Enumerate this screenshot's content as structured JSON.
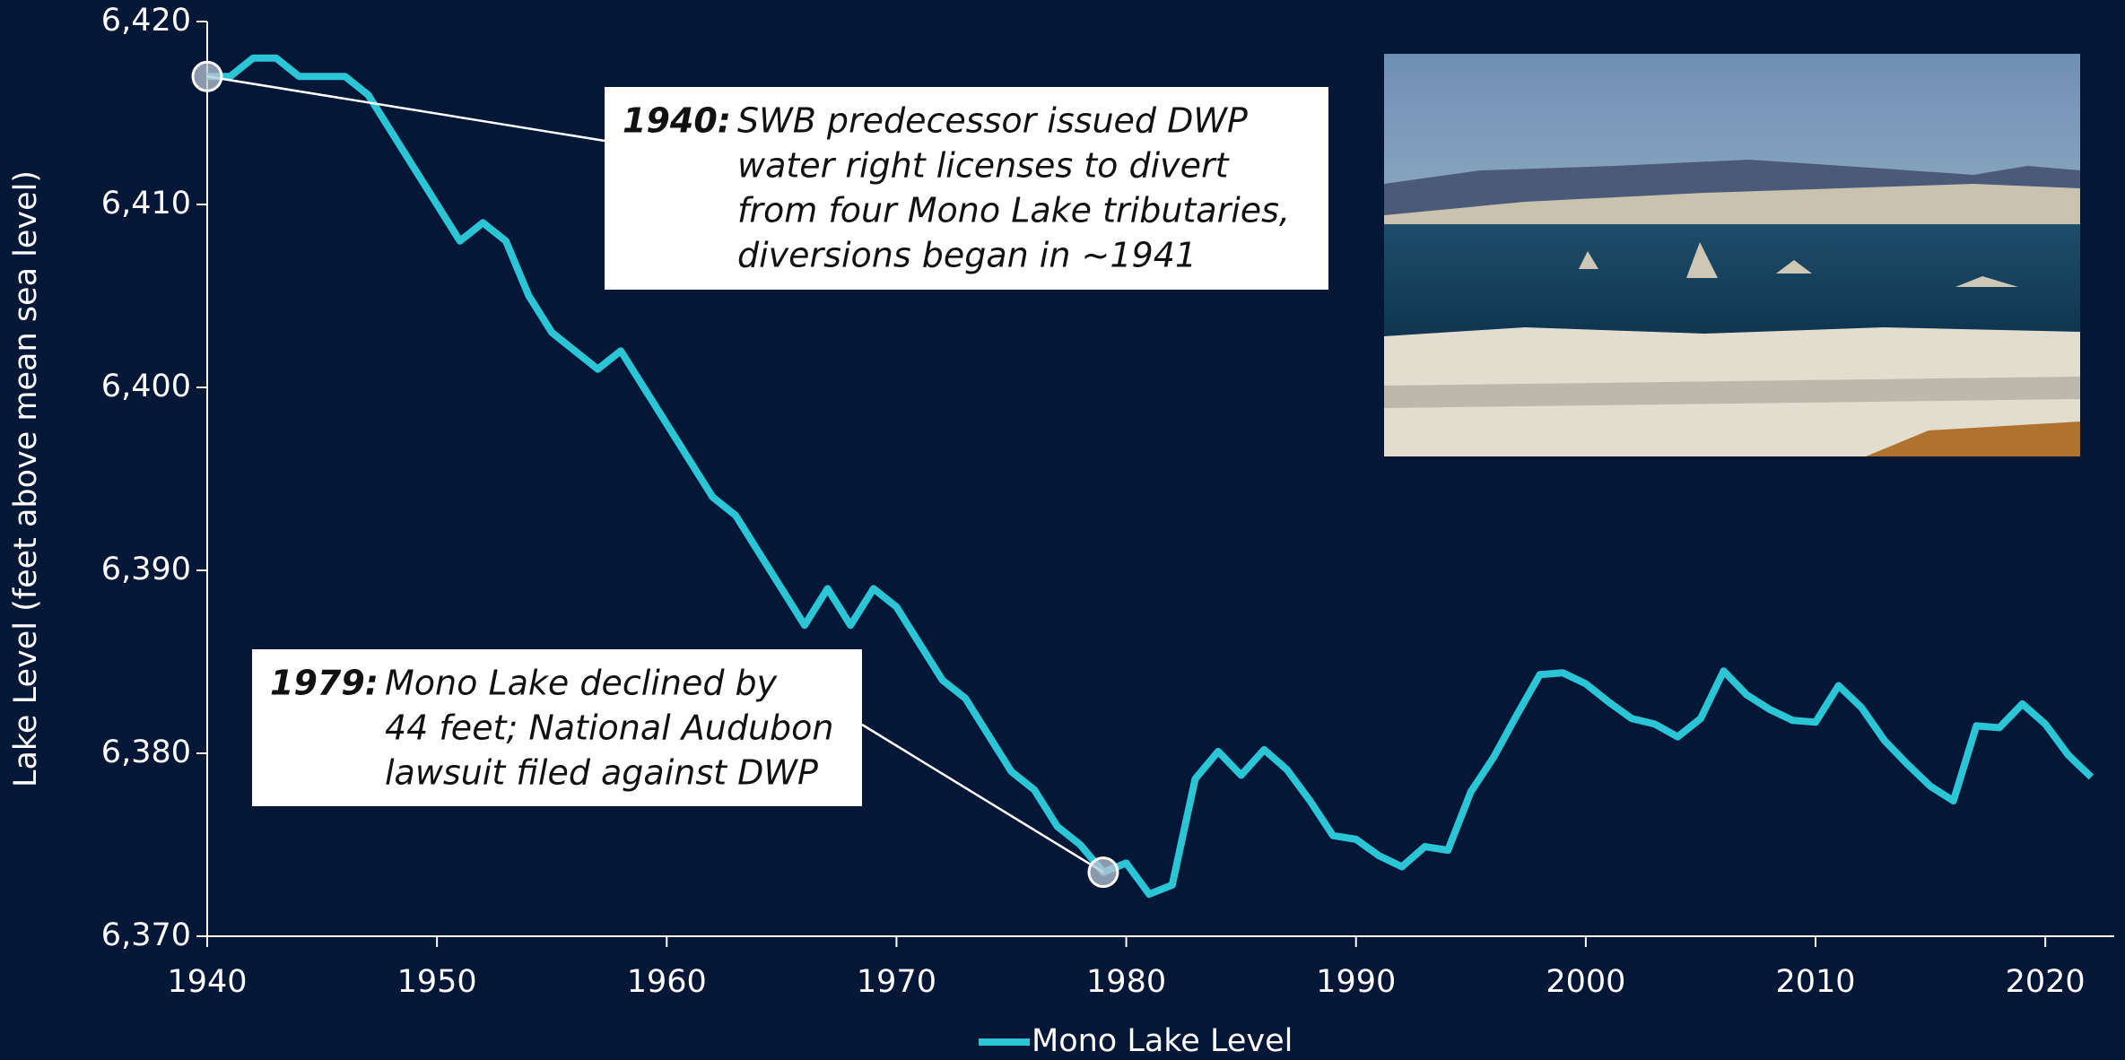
{
  "chart_data": {
    "type": "line",
    "x": [
      1940,
      1941,
      1942,
      1943,
      1944,
      1945,
      1946,
      1947,
      1948,
      1949,
      1950,
      1951,
      1952,
      1953,
      1954,
      1955,
      1956,
      1957,
      1958,
      1959,
      1960,
      1961,
      1962,
      1963,
      1964,
      1965,
      1966,
      1967,
      1968,
      1969,
      1970,
      1971,
      1972,
      1973,
      1974,
      1975,
      1976,
      1977,
      1978,
      1979,
      1980,
      1981,
      1982,
      1983,
      1984,
      1985,
      1986,
      1987,
      1988,
      1989,
      1990,
      1991,
      1992,
      1993,
      1994,
      1995,
      1996,
      1997,
      1998,
      1999,
      2000,
      2001,
      2002,
      2003,
      2004,
      2005,
      2006,
      2007,
      2008,
      2009,
      2010,
      2011,
      2012,
      2013,
      2014,
      2015,
      2016,
      2017,
      2018,
      2019,
      2020,
      2021,
      2022
    ],
    "series": [
      {
        "name": "Mono Lake Level",
        "color": "#2bc6d6",
        "values": [
          6417,
          6417,
          6418,
          6418,
          6417,
          6417,
          6417,
          6416,
          6414,
          6412,
          6410,
          6408,
          6409,
          6408,
          6405,
          6403,
          6402,
          6401,
          6402,
          6400,
          6398,
          6396,
          6394,
          6393,
          6391,
          6389,
          6387,
          6389,
          6387,
          6389,
          6388,
          6386,
          6384,
          6383,
          6381,
          6379,
          6378,
          6376,
          6375,
          6373.5,
          6374,
          6372.3,
          6372.8,
          6378.6,
          6380.1,
          6378.8,
          6380.2,
          6379.1,
          6377.4,
          6375.5,
          6375.3,
          6374.4,
          6373.8,
          6374.9,
          6374.7,
          6377.9,
          6379.8,
          6382.1,
          6384.3,
          6384.4,
          6383.8,
          6382.8,
          6381.9,
          6381.6,
          6380.9,
          6381.9,
          6384.5,
          6383.2,
          6382.4,
          6381.8,
          6381.7,
          6383.7,
          6382.5,
          6380.7,
          6379.4,
          6378.2,
          6377.4,
          6381.5,
          6381.4,
          6382.7,
          6381.6,
          6379.9,
          6378.7
        ]
      }
    ],
    "xlim": [
      1940,
      2023
    ],
    "xticks": [
      1940,
      1950,
      1960,
      1970,
      1980,
      1990,
      2000,
      2010,
      2020
    ],
    "ylim": [
      6370,
      6420
    ],
    "yticks": [
      {
        "value": 6370,
        "label": "6,370"
      },
      {
        "value": 6380,
        "label": "6,380"
      },
      {
        "value": 6390,
        "label": "6,390"
      },
      {
        "value": 6400,
        "label": "6,400"
      },
      {
        "value": 6410,
        "label": "6,410"
      },
      {
        "value": 6420,
        "label": "6,420"
      }
    ],
    "y_label": "Lake Level (feet above mean sea level)",
    "legend": "bottom",
    "annotations": [
      {
        "label": "1940:",
        "text": [
          "SWB predecessor issued DWP",
          "water right licenses to divert",
          "from four Mono Lake tributaries,",
          "diversions began in ~1941"
        ]
      },
      {
        "label": "1979:",
        "text": [
          "Mono Lake declined by",
          "44 feet; National Audubon",
          "lawsuit filed against DWP"
        ]
      }
    ]
  }
}
